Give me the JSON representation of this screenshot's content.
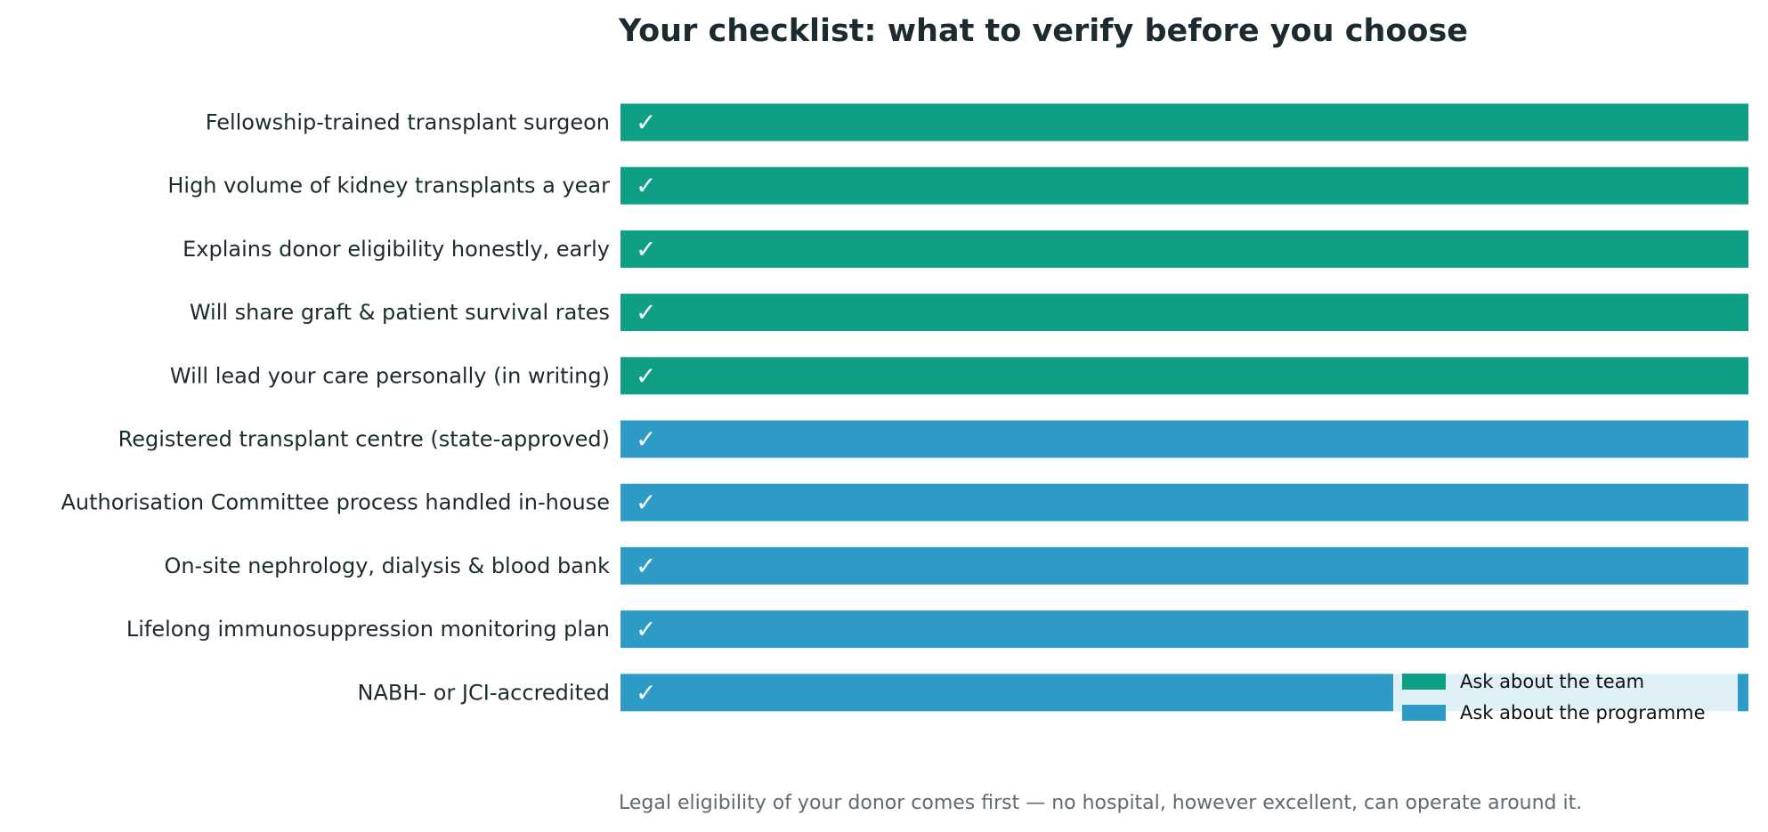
{
  "chart_data": {
    "type": "bar",
    "orientation": "horizontal",
    "title": "Your checklist: what to verify before you choose",
    "footnote": "Legal eligibility of your donor comes first — no hospital, however excellent, can operate around it.",
    "bar_marker": "✓",
    "categories": [
      "Fellowship-trained transplant surgeon",
      "High volume of kidney transplants a year",
      "Explains donor eligibility honestly, early",
      "Will share graft & patient survival rates",
      "Will lead your care personally (in writing)",
      "Registered transplant centre (state-approved)",
      "Authorisation Committee process handled in-house",
      "On-site nephrology, dialysis & blood bank",
      "Lifelong immunosuppression monitoring plan",
      "NABH- or JCI-accredited"
    ],
    "values": [
      1,
      1,
      1,
      1,
      1,
      1,
      1,
      1,
      1,
      1
    ],
    "groups": [
      "team",
      "team",
      "team",
      "team",
      "team",
      "programme",
      "programme",
      "programme",
      "programme",
      "programme"
    ],
    "xlim": [
      0,
      1
    ],
    "grid": false,
    "legend": {
      "placement": "bottom-right",
      "entries": [
        {
          "key": "team",
          "label": "Ask about the team",
          "color": "#0e9f85"
        },
        {
          "key": "programme",
          "label": "Ask about the programme",
          "color": "#2e9ac6"
        }
      ]
    }
  }
}
